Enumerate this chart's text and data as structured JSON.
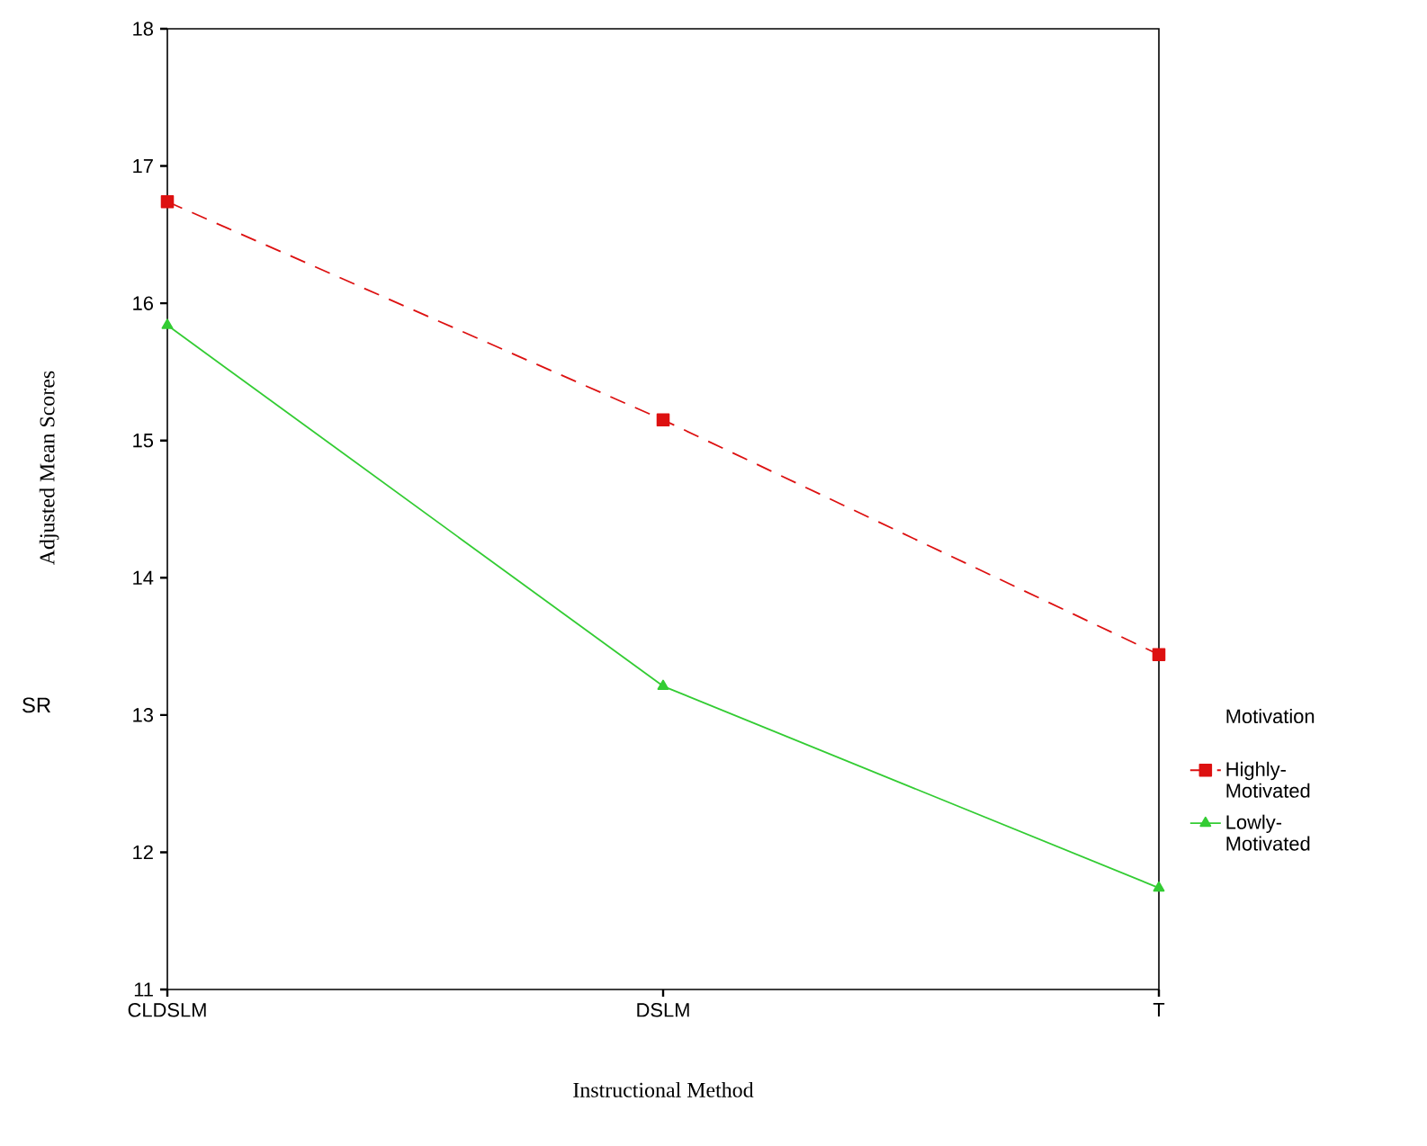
{
  "chart_data": {
    "type": "line",
    "xlabel": "Instructional Method",
    "ylabel": "Adjusted Mean Scores",
    "categories": [
      "CLDSLM",
      "DSLM",
      "T"
    ],
    "series": [
      {
        "name": "Highly-Motivated",
        "color": "#dd1111",
        "values": [
          16.74,
          15.15,
          13.44
        ],
        "marker": "square",
        "line_style": "dashed"
      },
      {
        "name": "Lowly-Motivated",
        "color": "#33cc33",
        "values": [
          15.84,
          13.21,
          11.74
        ],
        "marker": "triangle",
        "line_style": "solid"
      }
    ],
    "ylim": [
      11,
      18
    ],
    "yticks": [
      11,
      12,
      13,
      14,
      15,
      16,
      17,
      18
    ],
    "legend": "right",
    "legend_title": "Motivation",
    "annotations": [
      "SR"
    ]
  }
}
